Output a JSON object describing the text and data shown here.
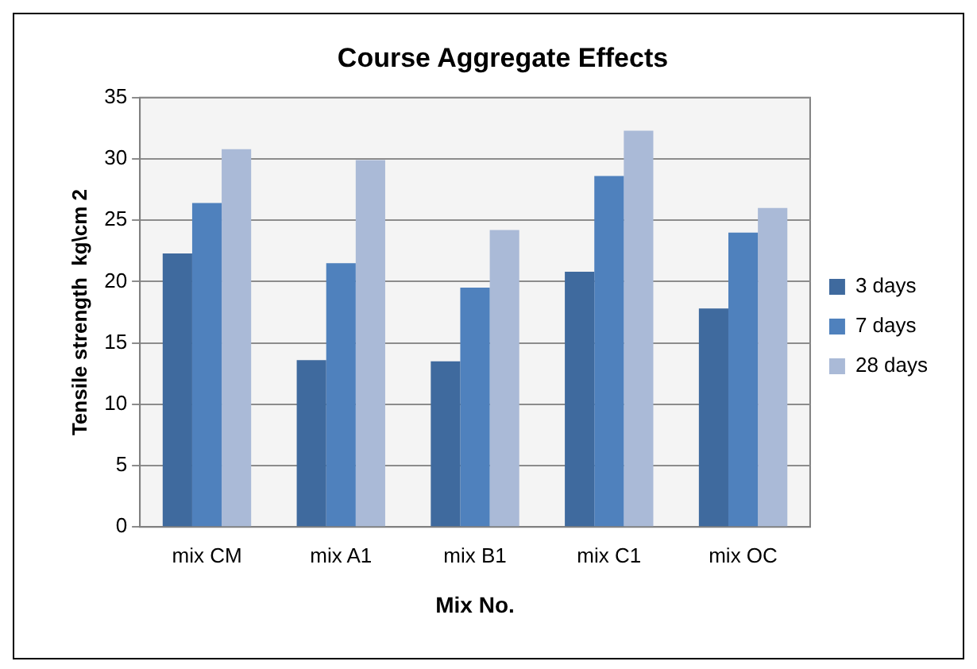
{
  "chart_data": {
    "type": "bar",
    "title": "Course Aggregate Effects",
    "xlabel": "Mix No.",
    "ylabel": "Tensile strength  kg\\cm 2",
    "categories": [
      "mix CM",
      "mix A1",
      "mix B1",
      "mix C1",
      "mix OC"
    ],
    "series": [
      {
        "name": "3 days",
        "color": "#3f6a9e",
        "values": [
          22.3,
          13.6,
          13.5,
          20.8,
          17.8
        ]
      },
      {
        "name": "7 days",
        "color": "#4f81bd",
        "values": [
          26.4,
          21.5,
          19.5,
          28.6,
          24.0
        ]
      },
      {
        "name": "28 days",
        "color": "#aabad7",
        "values": [
          30.8,
          29.9,
          24.2,
          32.3,
          26.0
        ]
      }
    ],
    "ylim": [
      0,
      35
    ],
    "yticks": [
      0,
      5,
      10,
      15,
      20,
      25,
      30,
      35
    ],
    "grid": "y",
    "legend": "right"
  }
}
